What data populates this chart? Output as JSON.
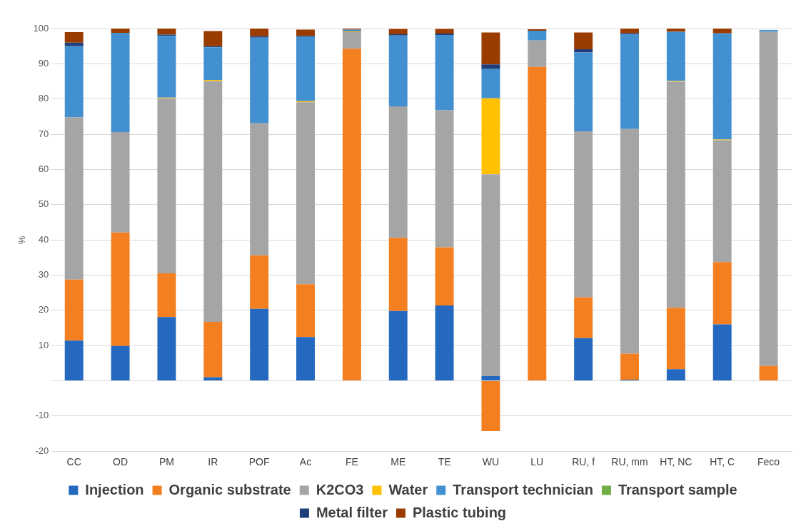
{
  "chart_data": {
    "type": "bar",
    "stacked": true,
    "ylabel": "%",
    "categories": [
      "CC",
      "OD",
      "PM",
      "IR",
      "POF",
      "Ac",
      "FE",
      "ME",
      "TE",
      "WU",
      "LU",
      "RU, f",
      "RU, mm",
      "HT, NC",
      "HT, C",
      "Feco"
    ],
    "series": [
      {
        "name": "Injection",
        "color": "#2468bf",
        "values": [
          11.4,
          9.9,
          18.1,
          1.0,
          20.4,
          12.4,
          0,
          19.8,
          21.4,
          1.3,
          null,
          12.1,
          0.3,
          3.3,
          16.0,
          null
        ]
      },
      {
        "name": "Organic substrate",
        "color": "#f47f20",
        "values": [
          17.3,
          32.2,
          12.4,
          15.7,
          15.2,
          15.0,
          94.3,
          20.8,
          16.5,
          -14.3,
          89.1,
          11.6,
          7.4,
          17.4,
          17.7,
          4.2
        ]
      },
      {
        "name": "K2CO3",
        "color": "#a5a5a5",
        "values": [
          46.1,
          28.5,
          49.7,
          68.4,
          37.5,
          51.7,
          4.7,
          37.3,
          38.9,
          57.3,
          7.5,
          47.1,
          63.8,
          64.2,
          34.6,
          94.9
        ]
      },
      {
        "name": "Water",
        "color": "#ffc000",
        "values": [
          0,
          0,
          0.2,
          0.3,
          0,
          0.3,
          0.2,
          0,
          0,
          21.6,
          0,
          0,
          0,
          0.2,
          0.2,
          0
        ]
      },
      {
        "name": "Transport technician",
        "color": "#4290d0",
        "values": [
          20.2,
          28.2,
          17.5,
          9.3,
          24.3,
          18.2,
          0.5,
          20.1,
          21.4,
          8.3,
          2.8,
          22.4,
          26.8,
          14.0,
          30.0,
          0.5
        ]
      },
      {
        "name": "Transport sample",
        "color": "#70ad47",
        "values": [
          0,
          0,
          0,
          0,
          0,
          0,
          0,
          0,
          0,
          0,
          0,
          0,
          0,
          0,
          0,
          0
        ]
      },
      {
        "name": "Metal filter",
        "color": "#1f3f7a",
        "values": [
          1.0,
          0,
          0.4,
          0.3,
          0.4,
          0.3,
          0,
          0.4,
          0.4,
          1.3,
          0,
          0.9,
          0.4,
          0,
          0.2,
          0
        ]
      },
      {
        "name": "Plastic tubing",
        "color": "#9a3c00",
        "values": [
          3.0,
          1.2,
          1.7,
          4.3,
          2.2,
          1.8,
          0.3,
          1.5,
          1.3,
          9.1,
          0.4,
          4.8,
          1.3,
          0.9,
          1.3,
          0
        ]
      }
    ],
    "ylim": [
      -20,
      100
    ],
    "yticks": [
      -20,
      -10,
      {
        "value": 0,
        "label": null
      },
      10,
      20,
      30,
      40,
      50,
      60,
      70,
      80,
      90,
      100
    ],
    "grid": "y",
    "legend": "bottom"
  }
}
